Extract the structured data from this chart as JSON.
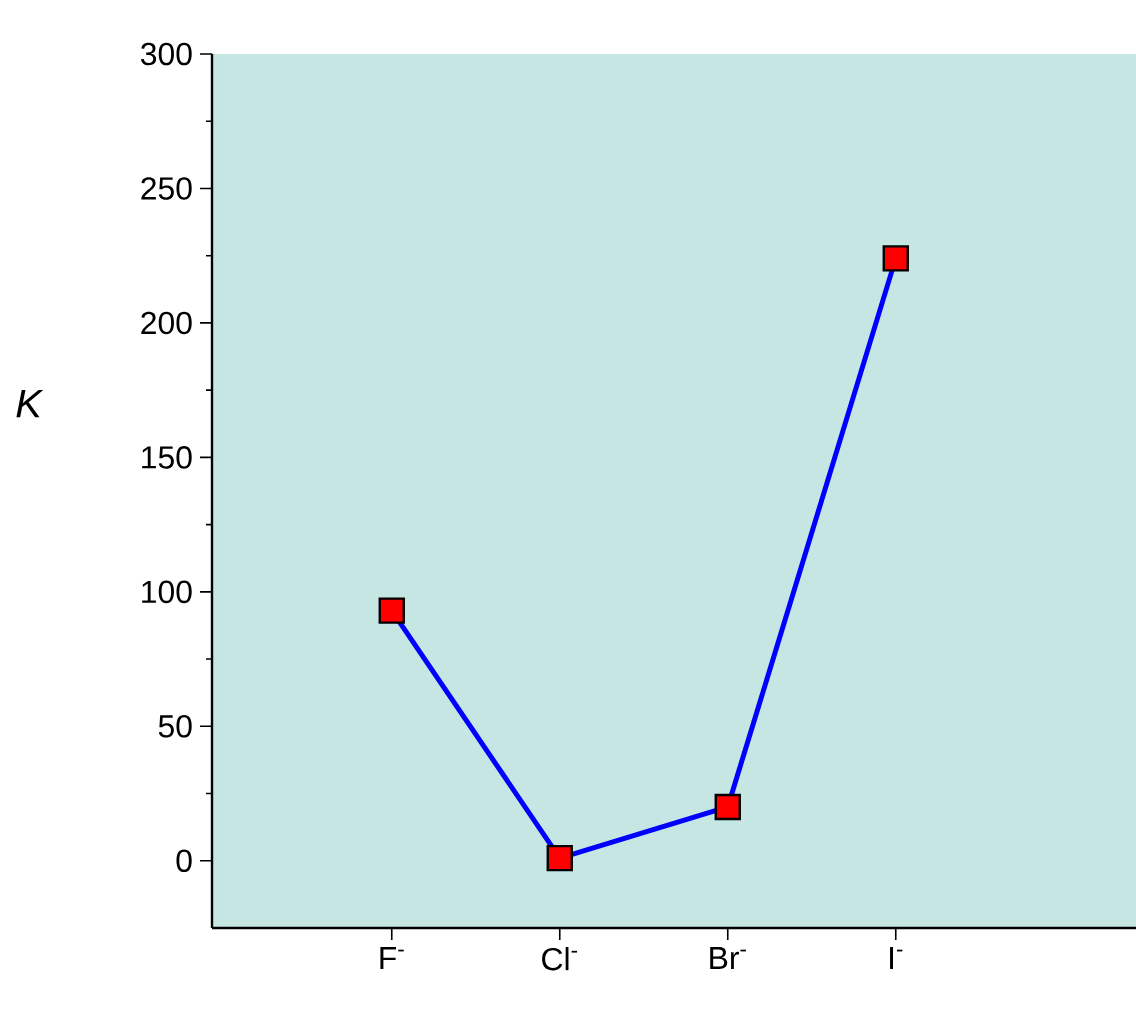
{
  "chart_data": {
    "type": "line",
    "ylabel": "*K*",
    "categories": [
      "F$^{-}$",
      "Cl$^{-}$",
      "Br$^{-}$",
      "I$^{-}$"
    ],
    "series": [
      {
        "color": "#0000ff",
        "colors": [
          "#ff0000",
          "#ff0000",
          "#ff0000",
          "#ff0000"
        ],
        "values": [
          93,
          1,
          20,
          224
        ]
      }
    ],
    "ylim": [
      -25,
      300
    ],
    "yticks": [
      0,
      50,
      100,
      150,
      200,
      250,
      300
    ],
    "marker": "square",
    "line_style": "solid",
    "grid": false
  }
}
